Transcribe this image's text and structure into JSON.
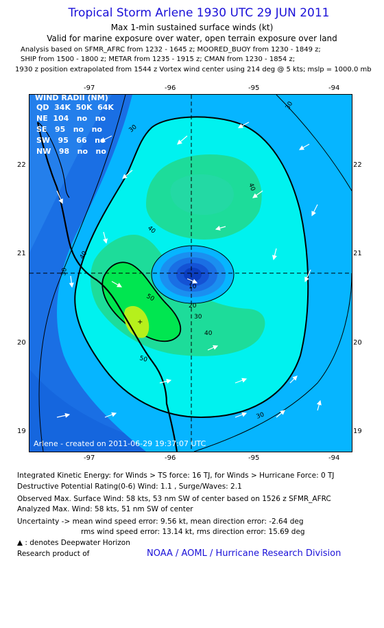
{
  "header": {
    "title": "Tropical Storm Arlene 1930 UTC 29 JUN 2011",
    "subtitle1": "Max 1-min sustained surface winds (kt)",
    "subtitle2": "Valid for marine exposure over water, open terrain exposure over land",
    "analysis1": "Analysis based on SFMR_AFRC from 1232 - 1645 z; MOORED_BUOY from 1230 - 1849 z;",
    "analysis2": "SHIP from 1500 - 1800 z; METAR from 1235 - 1915 z; CMAN from 1230 - 1854 z;",
    "analysis3": "1930 z position extrapolated from 1544 z Vortex wind center using 214 deg @ 5 kts; mslp = 1000.0 mb"
  },
  "map": {
    "lon_ticks": [
      "-97",
      "-96",
      "-95",
      "-94"
    ],
    "lat_ticks": [
      "22",
      "21",
      "20",
      "19"
    ],
    "wind_radii": {
      "title": "WIND RADII (NM)",
      "header": "QD  34K  50K  64K",
      "rows": [
        "NE  104   no   no",
        "SE   95   no   no",
        "SW   95   66   no",
        "NW   98   no   no"
      ]
    },
    "contour_labels": [
      "30",
      "30",
      "40",
      "40",
      "40",
      "40",
      "50",
      "50",
      "30",
      "20",
      "10",
      "30",
      "30"
    ],
    "credit": "Arlene - created on 2011-06-29 19:37:07 UTC",
    "colors": {
      "outer": "#1a6fe4",
      "c30": "#06b5ff",
      "c40": "#00f2ef",
      "c50": "#1ddc9a",
      "c55": "#00e650",
      "c60": "#b6f01c",
      "core": "#0a3dbf"
    }
  },
  "footer": {
    "ike": "Integrated Kinetic Energy:  for Winds > TS force: 16 TJ,  for Winds > Hurricane Force: 0 TJ",
    "dpr": "Destructive Potential Rating(0-6)   Wind: 1.1 , Surge/Waves: 2.1",
    "obs_max": "Observed Max. Surface Wind: 58 kts, 53 nm SW of center based on 1526 z SFMR_AFRC",
    "ana_max": "Analyzed Max. Wind: 58 kts, 51 nm SW of center",
    "unc1": "Uncertainty -> mean wind speed error: 9.56 kt,   mean direction error:  -2.64 deg",
    "unc2": "rms wind speed error: 13.14 kt,   rms direction error: 15.69 deg",
    "legend_dwh": ": denotes Deepwater Horizon",
    "research_label": "Research product of",
    "research_org": "NOAA / AOML / Hurricane Research Division"
  }
}
